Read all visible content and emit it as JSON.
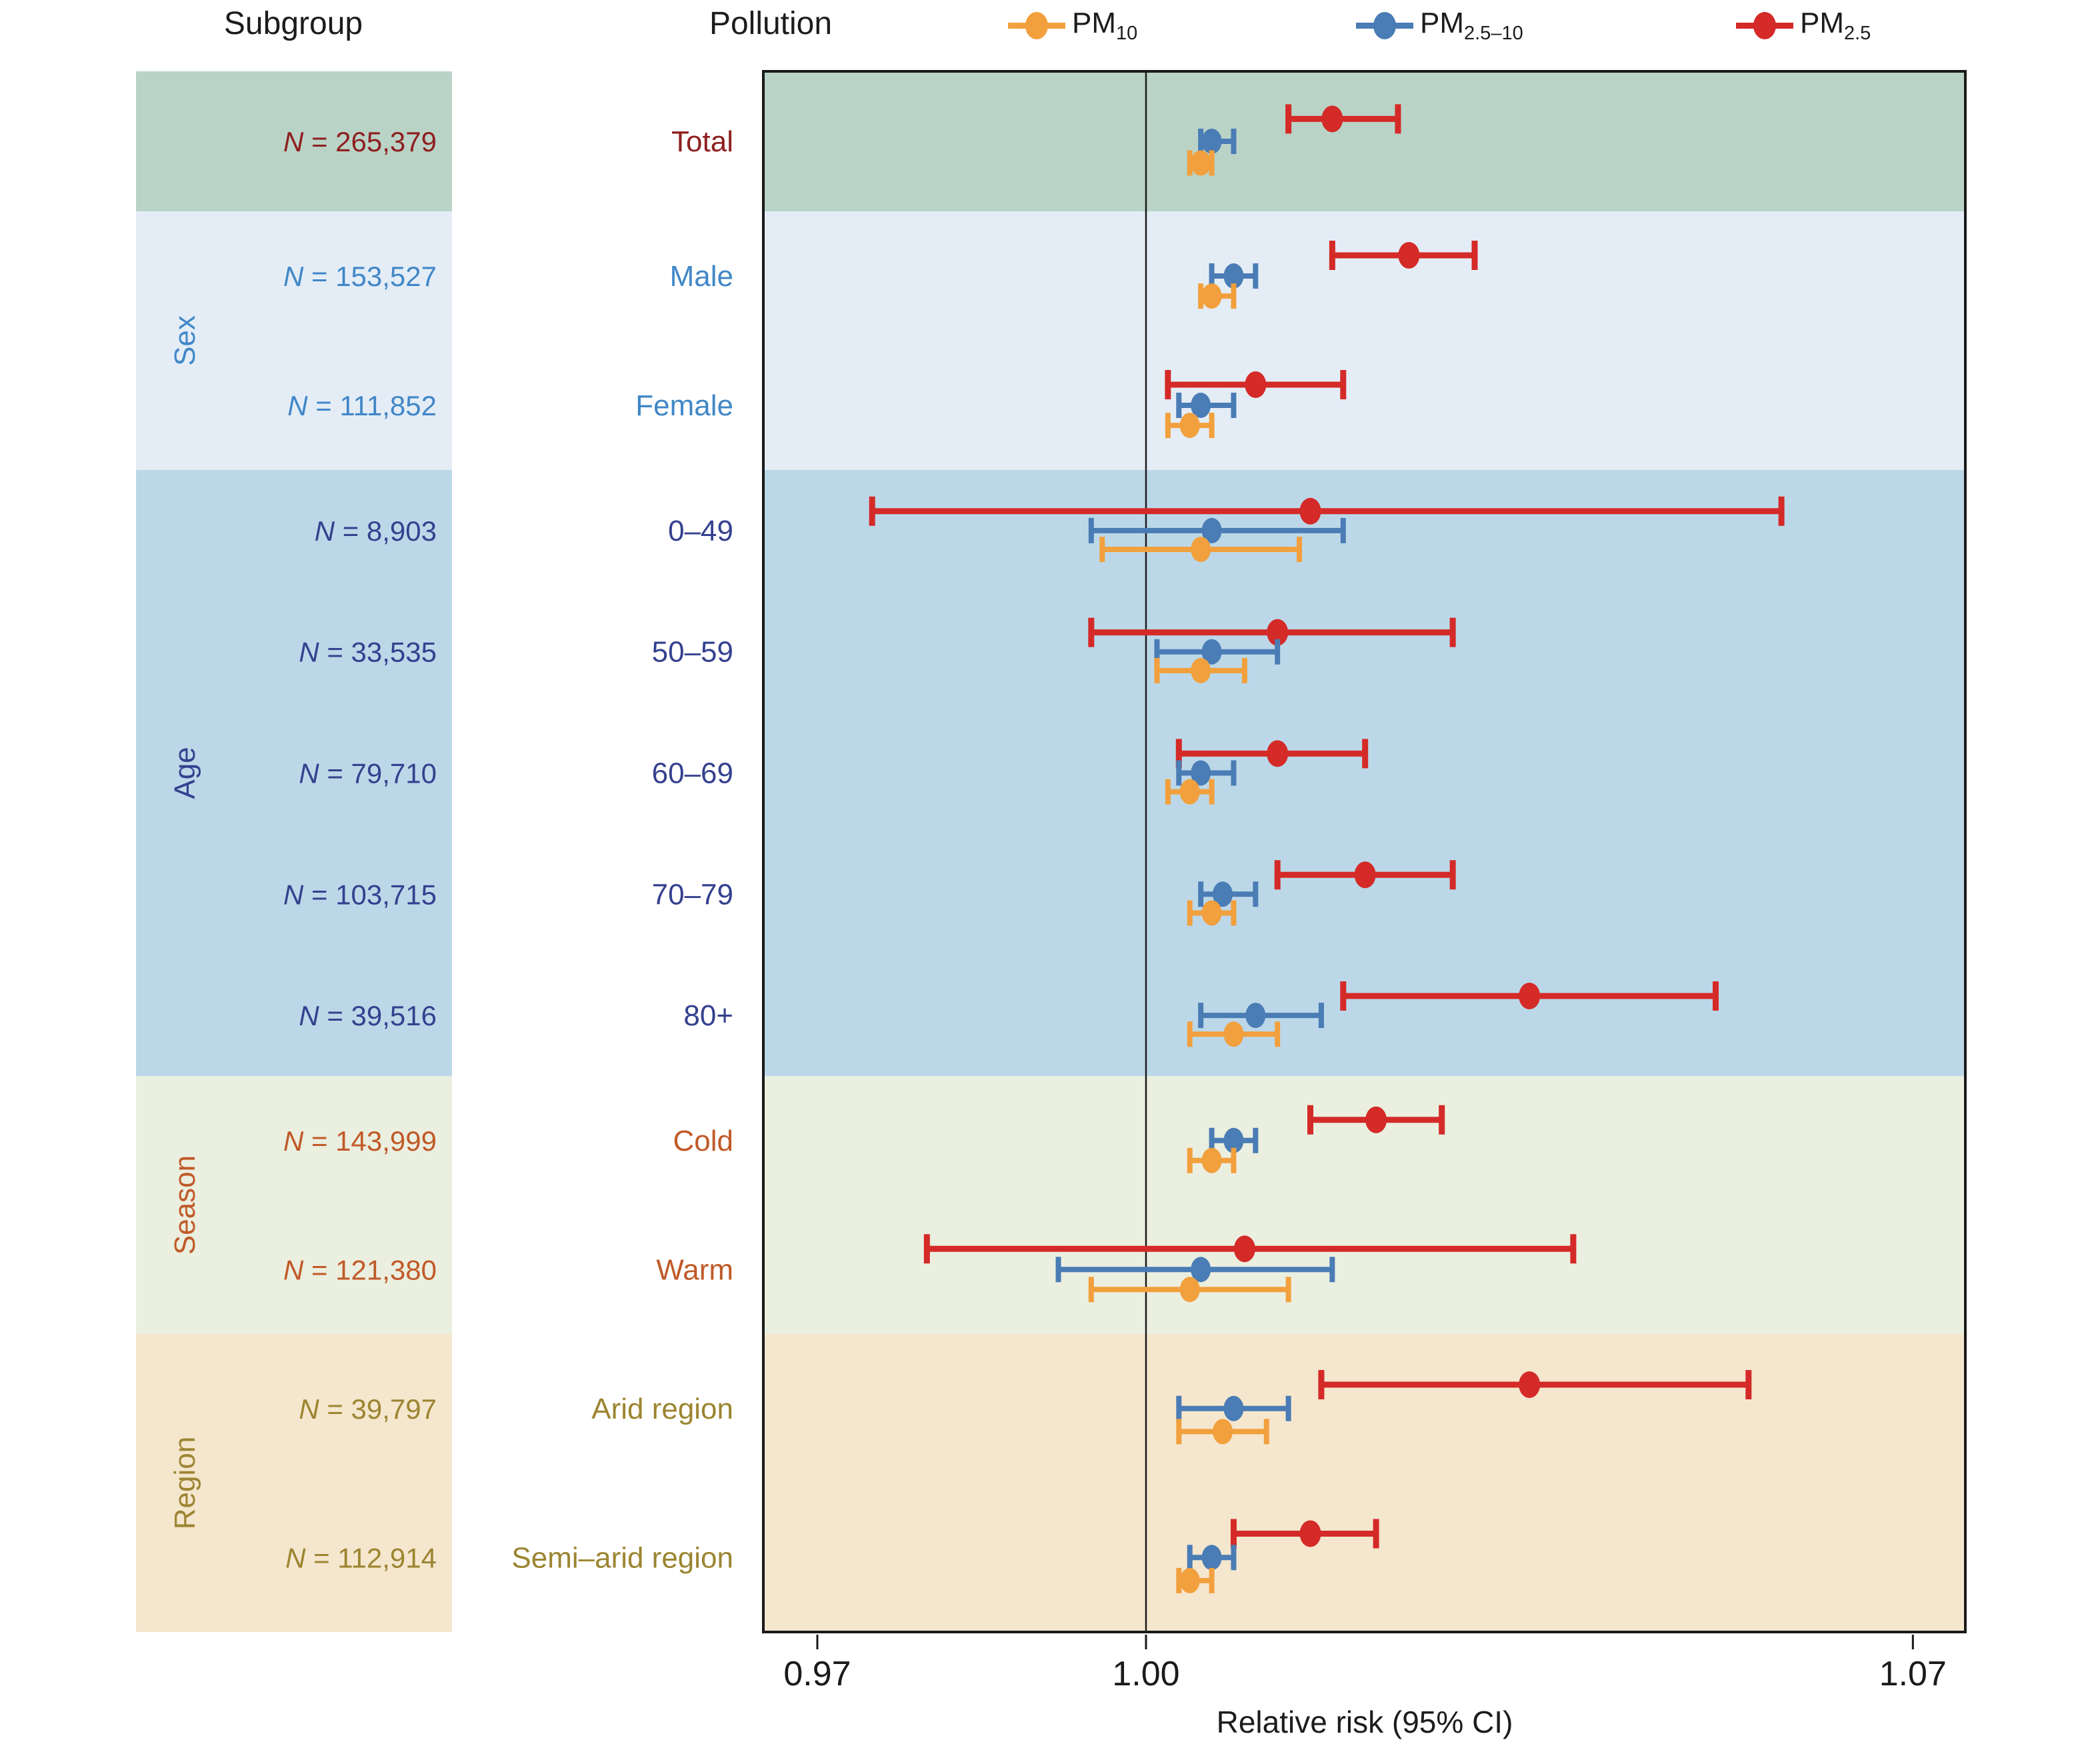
{
  "header": {
    "subgroup": "Subgroup",
    "pollution": "Pollution"
  },
  "legend": {
    "items": [
      {
        "base": "PM",
        "sub": "10",
        "series": "pm10",
        "color": "#f2a03d"
      },
      {
        "base": "PM",
        "sub": "2.5–10",
        "series": "pm2510",
        "color": "#4a7cb5"
      },
      {
        "base": "PM",
        "sub": "2.5",
        "series": "pm25",
        "color": "#d42a28"
      }
    ]
  },
  "chart_data": {
    "type": "forest (horizontal scatter with 95% CI error bars)",
    "x_axis": {
      "title": "Relative risk (95% CI)",
      "ticks": [
        0.97,
        1.0,
        1.07
      ],
      "tick_labels": [
        "0.97",
        "1.00",
        "1.07"
      ],
      "range": [
        0.965,
        1.075
      ],
      "reference_line": 1.0
    },
    "series_meta": [
      {
        "key": "pm25",
        "label": "PM2.5",
        "color": "#d42a28"
      },
      {
        "key": "pm2510",
        "label": "PM2.5-10",
        "color": "#4a7cb5"
      },
      {
        "key": "pm10",
        "label": "PM10",
        "color": "#f2a03d"
      }
    ],
    "groups": [
      {
        "label": "",
        "text_color": "#8e1f1f",
        "band_color": "#bad3c7",
        "rows": [
          {
            "label": "Total",
            "n_label": "N = 265,379",
            "pm25": {
              "est": 1.017,
              "lo": 1.013,
              "hi": 1.023
            },
            "pm2510": {
              "est": 1.006,
              "lo": 1.005,
              "hi": 1.008
            },
            "pm10": {
              "est": 1.005,
              "lo": 1.004,
              "hi": 1.006
            }
          }
        ]
      },
      {
        "label": "Sex",
        "text_color": "#4187c7",
        "band_color": "#e4edf6",
        "rows": [
          {
            "label": "Male",
            "n_label": "N = 153,527",
            "pm25": {
              "est": 1.024,
              "lo": 1.017,
              "hi": 1.03
            },
            "pm2510": {
              "est": 1.008,
              "lo": 1.006,
              "hi": 1.01
            },
            "pm10": {
              "est": 1.006,
              "lo": 1.005,
              "hi": 1.008
            }
          },
          {
            "label": "Female",
            "n_label": "N = 111,852",
            "pm25": {
              "est": 1.01,
              "lo": 1.002,
              "hi": 1.018
            },
            "pm2510": {
              "est": 1.005,
              "lo": 1.003,
              "hi": 1.008
            },
            "pm10": {
              "est": 1.004,
              "lo": 1.002,
              "hi": 1.006
            }
          }
        ]
      },
      {
        "label": "Age",
        "text_color": "#35418f",
        "band_color": "#bcd8e8",
        "rows": [
          {
            "label": "0–49",
            "n_label": "N = 8,903",
            "pm25": {
              "est": 1.015,
              "lo": 0.975,
              "hi": 1.058
            },
            "pm2510": {
              "est": 1.006,
              "lo": 0.995,
              "hi": 1.018
            },
            "pm10": {
              "est": 1.005,
              "lo": 0.996,
              "hi": 1.014
            }
          },
          {
            "label": "50–59",
            "n_label": "N = 33,535",
            "pm25": {
              "est": 1.012,
              "lo": 0.995,
              "hi": 1.028
            },
            "pm2510": {
              "est": 1.006,
              "lo": 1.001,
              "hi": 1.012
            },
            "pm10": {
              "est": 1.005,
              "lo": 1.001,
              "hi": 1.009
            }
          },
          {
            "label": "60–69",
            "n_label": "N = 79,710",
            "pm25": {
              "est": 1.012,
              "lo": 1.003,
              "hi": 1.02
            },
            "pm2510": {
              "est": 1.005,
              "lo": 1.003,
              "hi": 1.008
            },
            "pm10": {
              "est": 1.004,
              "lo": 1.002,
              "hi": 1.006
            }
          },
          {
            "label": "70–79",
            "n_label": "N = 103,715",
            "pm25": {
              "est": 1.02,
              "lo": 1.012,
              "hi": 1.028
            },
            "pm2510": {
              "est": 1.007,
              "lo": 1.005,
              "hi": 1.01
            },
            "pm10": {
              "est": 1.006,
              "lo": 1.004,
              "hi": 1.008
            }
          },
          {
            "label": "80+",
            "n_label": "N = 39,516",
            "pm25": {
              "est": 1.035,
              "lo": 1.018,
              "hi": 1.052
            },
            "pm2510": {
              "est": 1.01,
              "lo": 1.005,
              "hi": 1.016
            },
            "pm10": {
              "est": 1.008,
              "lo": 1.004,
              "hi": 1.012
            }
          }
        ]
      },
      {
        "label": "Season",
        "text_color": "#c05a28",
        "band_color": "#ebefe0",
        "rows": [
          {
            "label": "Cold",
            "n_label": "N = 143,999",
            "pm25": {
              "est": 1.021,
              "lo": 1.015,
              "hi": 1.027
            },
            "pm2510": {
              "est": 1.008,
              "lo": 1.006,
              "hi": 1.01
            },
            "pm10": {
              "est": 1.006,
              "lo": 1.004,
              "hi": 1.008
            }
          },
          {
            "label": "Warm",
            "n_label": "N = 121,380",
            "pm25": {
              "est": 1.009,
              "lo": 0.98,
              "hi": 1.039
            },
            "pm2510": {
              "est": 1.005,
              "lo": 0.992,
              "hi": 1.017
            },
            "pm10": {
              "est": 1.004,
              "lo": 0.995,
              "hi": 1.013
            }
          }
        ]
      },
      {
        "label": "Region",
        "text_color": "#9c8531",
        "band_color": "#f5e6ce",
        "rows": [
          {
            "label": "Arid region",
            "n_label": "N = 39,797",
            "pm25": {
              "est": 1.035,
              "lo": 1.016,
              "hi": 1.055
            },
            "pm2510": {
              "est": 1.008,
              "lo": 1.003,
              "hi": 1.013
            },
            "pm10": {
              "est": 1.007,
              "lo": 1.003,
              "hi": 1.011
            }
          },
          {
            "label": "Semi–arid region",
            "n_label": "N = 112,914",
            "pm25": {
              "est": 1.015,
              "lo": 1.008,
              "hi": 1.021
            },
            "pm2510": {
              "est": 1.006,
              "lo": 1.004,
              "hi": 1.008
            },
            "pm10": {
              "est": 1.004,
              "lo": 1.003,
              "hi": 1.006
            }
          }
        ]
      }
    ]
  }
}
